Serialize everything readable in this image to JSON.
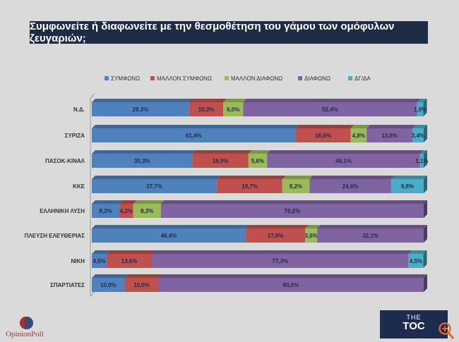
{
  "title": "Συμφωνείτε ή διαφωνείτε με την θεσμοθέτηση του γάμου των ομόφυλων ζευγαριών;",
  "chart_data": {
    "type": "bar",
    "orientation": "horizontal",
    "stacked": true,
    "percent_stacked": true,
    "title": "Συμφωνείτε ή διαφωνείτε με την θεσμοθέτηση του γάμου των ομόφυλων ζευγαριών;",
    "legend_position": "top",
    "grid": false,
    "categories": [
      "Ν.Δ.",
      "ΣΥΡΙΖΑ",
      "ΠΑΣΟΚ-ΚΙΝΑΛ",
      "ΚΚΕ",
      "ΕΛΛΗΝΙΚΗ ΛΥΣΗ",
      "ΠΛΕΥΣΗ ΕΛΕΥΘΕΡΙΑΣ",
      "ΝΙΚΗ",
      "ΣΠΑΡΤΙΑΤΕΣ"
    ],
    "series": [
      {
        "name": "ΣΥΜΦΩΝΩ",
        "color": "#4f81bd",
        "values": [
          29.3,
          61.4,
          30.3,
          37.7,
          8.3,
          46.4,
          4.5,
          10.0
        ]
      },
      {
        "name": "ΜΑΛΛΟΝ ΣΥΜΦΩΝΩ",
        "color": "#c0504d",
        "values": [
          10.3,
          16.6,
          16.9,
          19.7,
          4.2,
          17.9,
          13.6,
          10.0
        ]
      },
      {
        "name": "ΜΑΛΛΟΝ ΔΙΑΦΩΝΩ",
        "color": "#9bbb59",
        "values": [
          6.0,
          4.8,
          5.6,
          8.2,
          8.3,
          3.6,
          0,
          0
        ]
      },
      {
        "name": "ΔΙΑΦΩΝΩ",
        "color": "#8064a2",
        "values": [
          52.4,
          13.8,
          46.1,
          24.6,
          79.2,
          32.1,
          77.3,
          80.0
        ]
      },
      {
        "name": "ΔΓ/ΔΑ",
        "color": "#4bacc6",
        "values": [
          1.9,
          3.4,
          1.1,
          9.8,
          0,
          0,
          4.5,
          0
        ]
      }
    ],
    "data_labels": [
      [
        "29,3%",
        "61,4%",
        "30,3%",
        "37,7%",
        "8,3%",
        "46,4%",
        "4,5%",
        "10,0%"
      ],
      [
        "10,3%",
        "16,6%",
        "16,9%",
        "19,7%",
        "4,2%",
        "17,9%",
        "13,6%",
        "10,0%"
      ],
      [
        "6,0%",
        "4,8%",
        "5,6%",
        "8,2%",
        "8,3%",
        "3,6%",
        "",
        ""
      ],
      [
        "52,4%",
        "13,8%",
        "46,1%",
        "24,6%",
        "79,2%",
        "32,1%",
        "77,3%",
        "80,0%"
      ],
      [
        "1,9%",
        "3,4%",
        "1,1%",
        "9,8%",
        "",
        "",
        "4,5%",
        ""
      ]
    ],
    "xlim": [
      0,
      100
    ]
  },
  "logos": {
    "left": "OpinionPoll",
    "right_small": "THE",
    "right_big": "TOC"
  }
}
